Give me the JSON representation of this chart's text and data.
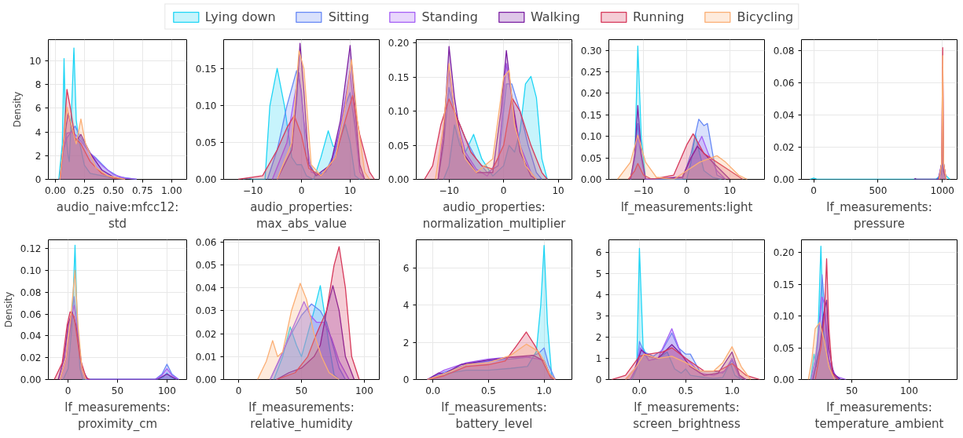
{
  "chart_data": [
    {
      "type": "area",
      "legend": "top",
      "grid": true,
      "xlabel": "audio_naive:mfcc12:\nstd",
      "ylabel": "Density",
      "xlim": [
        -0.06,
        1.13
      ],
      "xticks": [
        {
          "value": 0,
          "label": "0.00"
        },
        {
          "value": 0.25,
          "label": "0.25"
        },
        {
          "value": 0.5,
          "label": "0.50"
        },
        {
          "value": 0.75,
          "label": "0.75"
        },
        {
          "value": 1,
          "label": "1.00"
        }
      ],
      "ylim": [
        0,
        11.8
      ],
      "yticks": [
        0,
        2,
        4,
        6,
        8,
        10
      ],
      "series": [
        {
          "name": "Lying down",
          "color": "#1fd5f5",
          "x": [
            0.03,
            0.06,
            0.075,
            0.09,
            0.11,
            0.12,
            0.14,
            0.16,
            0.18,
            0.2,
            0.25,
            0.3,
            0.4,
            0.5,
            0.6
          ],
          "values": [
            0,
            3,
            10.2,
            4,
            2,
            1.5,
            6,
            11.1,
            5,
            3.5,
            1.2,
            0.5,
            0.3,
            0.1,
            0
          ]
        },
        {
          "name": "Sitting",
          "color": "#6688f5",
          "x": [
            0.04,
            0.07,
            0.1,
            0.17,
            0.22,
            0.3,
            0.35,
            0.45,
            0.55,
            0.7
          ],
          "values": [
            0,
            2.5,
            3.5,
            4.5,
            3.5,
            2.2,
            1.8,
            0.8,
            0.2,
            0
          ]
        },
        {
          "name": "Standing",
          "color": "#a45ef5",
          "x": [
            0.04,
            0.07,
            0.1,
            0.15,
            0.2,
            0.3,
            0.4,
            0.5,
            0.6,
            0.7
          ],
          "values": [
            0,
            2.5,
            3.9,
            4,
            3.5,
            2.2,
            1.2,
            0.4,
            0.1,
            0
          ]
        },
        {
          "name": "Walking",
          "color": "#7b1fa2",
          "x": [
            0.04,
            0.07,
            0.11,
            0.15,
            0.18,
            0.22,
            0.3,
            0.4,
            0.5,
            0.6
          ],
          "values": [
            0,
            3,
            5.6,
            4,
            3.2,
            3.8,
            2.2,
            0.8,
            0.2,
            0
          ]
        },
        {
          "name": "Running",
          "color": "#d6395b",
          "x": [
            0.04,
            0.07,
            0.1,
            0.13,
            0.17,
            0.22,
            0.3,
            0.4,
            0.5,
            0.6
          ],
          "values": [
            0,
            3,
            7.6,
            6,
            3.5,
            3,
            1.5,
            0.5,
            0.1,
            0
          ]
        },
        {
          "name": "Bicycling",
          "color": "#fbae74",
          "x": [
            0.04,
            0.07,
            0.1,
            0.14,
            0.18,
            0.22,
            0.26,
            0.35,
            0.45,
            0.6
          ],
          "values": [
            0,
            3,
            6.1,
            4.5,
            3,
            5.1,
            3,
            1,
            0.3,
            0
          ]
        }
      ]
    },
    {
      "type": "area",
      "grid": true,
      "xlabel": "audio_properties:\nmax_abs_value",
      "xlim": [
        -16,
        16
      ],
      "xticks": [
        {
          "value": -10,
          "label": "−10"
        },
        0,
        10
      ],
      "ylim": [
        0,
        0.19
      ],
      "yticks": [
        {
          "value": 0,
          "label": "0.00"
        },
        {
          "value": 0.05,
          "label": "0.05"
        },
        {
          "value": 0.1,
          "label": "0.10"
        },
        {
          "value": 0.15,
          "label": "0.15"
        }
      ],
      "series": [
        {
          "color": "#1fd5f5",
          "x": [
            -12,
            -11,
            -10,
            -7.5,
            -6.5,
            -5,
            -3.5,
            -2,
            -1,
            0,
            1,
            2.5,
            4,
            5.5,
            6.5,
            7.5,
            9,
            10,
            11,
            12
          ],
          "values": [
            0,
            0.002,
            0,
            0,
            0.1,
            0.151,
            0.1,
            0.03,
            0.02,
            0.02,
            0.005,
            0,
            0.03,
            0.066,
            0.045,
            0.045,
            0.075,
            0.05,
            0.005,
            0
          ]
        },
        {
          "color": "#6688f5",
          "x": [
            -7,
            -5,
            -3,
            -1,
            0,
            1,
            3,
            5,
            7,
            9,
            10,
            11,
            12,
            13
          ],
          "values": [
            0,
            0.04,
            0.1,
            0.148,
            0.12,
            0.03,
            0.005,
            0.01,
            0.04,
            0.1,
            0.118,
            0.07,
            0.01,
            0
          ]
        },
        {
          "color": "#a45ef5",
          "x": [
            -6,
            -3,
            -1.5,
            -0.5,
            0.5,
            2,
            4,
            6,
            8,
            10,
            11,
            12,
            13
          ],
          "values": [
            0,
            0.05,
            0.11,
            0.145,
            0.08,
            0.01,
            0.005,
            0.02,
            0.07,
            0.148,
            0.08,
            0.01,
            0
          ]
        },
        {
          "color": "#7b1fa2",
          "x": [
            -5,
            -2,
            -1,
            -0.3,
            0.5,
            1.5,
            3,
            6,
            8,
            10,
            11,
            12,
            13
          ],
          "values": [
            0,
            0.04,
            0.11,
            0.185,
            0.12,
            0.02,
            0.005,
            0.02,
            0.08,
            0.182,
            0.1,
            0.02,
            0
          ]
        },
        {
          "color": "#d6395b",
          "x": [
            -13,
            -8,
            -5,
            -3,
            -1.5,
            0,
            1.5,
            4,
            7,
            9,
            10.5,
            12,
            14,
            15
          ],
          "values": [
            0,
            0.005,
            0.04,
            0.07,
            0.087,
            0.06,
            0.015,
            0.005,
            0.03,
            0.08,
            0.114,
            0.06,
            0.01,
            0
          ]
        },
        {
          "color": "#fbae74",
          "x": [
            -5,
            -2,
            -0.5,
            0.5,
            2,
            4,
            7,
            9,
            10.3,
            11.5,
            13,
            14
          ],
          "values": [
            0,
            0.05,
            0.175,
            0.15,
            0.02,
            0.005,
            0.03,
            0.1,
            0.163,
            0.08,
            0.01,
            0
          ]
        }
      ]
    },
    {
      "type": "area",
      "grid": true,
      "xlabel": "audio_properties:\nnormalization_multiplier",
      "xlim": [
        -16,
        12.5
      ],
      "xticks": [
        {
          "value": -10,
          "label": "−10"
        },
        0,
        10
      ],
      "ylim": [
        0,
        0.205
      ],
      "yticks": [
        {
          "value": 0,
          "label": "0.00"
        },
        {
          "value": 0.05,
          "label": "0.05"
        },
        {
          "value": 0.1,
          "label": "0.10"
        },
        {
          "value": 0.15,
          "label": "0.15"
        },
        {
          "value": 0.2,
          "label": "0.20"
        }
      ],
      "series": [
        {
          "color": "#1fd5f5",
          "x": [
            -11,
            -10,
            -9,
            -8,
            -7,
            -5.5,
            -4,
            -2,
            0,
            1,
            2,
            3,
            4,
            5,
            6,
            7,
            8
          ],
          "values": [
            0,
            0.02,
            0.08,
            0.05,
            0.04,
            0.066,
            0.03,
            0.005,
            0.02,
            0.05,
            0.04,
            0.07,
            0.14,
            0.151,
            0.12,
            0.03,
            0
          ]
        },
        {
          "color": "#6688f5",
          "x": [
            -12,
            -11,
            -10,
            -9,
            -7,
            -5,
            -3,
            -1,
            0.5,
            1.5,
            3,
            4.5,
            6,
            7
          ],
          "values": [
            0,
            0.05,
            0.135,
            0.1,
            0.06,
            0.03,
            0.01,
            0.02,
            0.14,
            0.14,
            0.1,
            0.05,
            0.01,
            0
          ]
        },
        {
          "color": "#a45ef5",
          "x": [
            -12,
            -11,
            -10,
            -9,
            -7,
            -5,
            -3,
            -1,
            0.5,
            1.5,
            3,
            5,
            6
          ],
          "values": [
            0,
            0.08,
            0.16,
            0.1,
            0.04,
            0.015,
            0.005,
            0.03,
            0.17,
            0.12,
            0.05,
            0.01,
            0
          ]
        },
        {
          "color": "#7b1fa2",
          "x": [
            -12,
            -11,
            -10,
            -9,
            -7.5,
            -5,
            -2,
            -0.5,
            0.5,
            1.5,
            3,
            5,
            6
          ],
          "values": [
            0,
            0.06,
            0.195,
            0.12,
            0.04,
            0.01,
            0.01,
            0.1,
            0.189,
            0.12,
            0.04,
            0.005,
            0
          ]
        },
        {
          "color": "#d6395b",
          "x": [
            -14.5,
            -13,
            -11.5,
            -10,
            -8,
            -6,
            -4,
            -2,
            0,
            1.5,
            3,
            5,
            7,
            8
          ],
          "values": [
            0,
            0.02,
            0.08,
            0.118,
            0.08,
            0.04,
            0.02,
            0.015,
            0.05,
            0.12,
            0.1,
            0.05,
            0.01,
            0
          ]
        },
        {
          "color": "#fbae74",
          "x": [
            -12.5,
            -11,
            -10,
            -9,
            -7,
            -5,
            -2,
            0,
            1,
            2,
            4,
            6
          ],
          "values": [
            0,
            0.08,
            0.17,
            0.1,
            0.03,
            0.01,
            0.03,
            0.15,
            0.16,
            0.08,
            0.02,
            0
          ]
        }
      ]
    },
    {
      "type": "area",
      "grid": true,
      "xlabel": "lf_measurements:light",
      "xlim": [
        -18,
        18
      ],
      "xticks": [
        {
          "value": -10,
          "label": "−10"
        },
        0,
        10
      ],
      "ylim": [
        0,
        0.325
      ],
      "yticks": [
        {
          "value": 0,
          "label": "0.00"
        },
        {
          "value": 0.05,
          "label": "0.05"
        },
        {
          "value": 0.1,
          "label": "0.10"
        },
        {
          "value": 0.15,
          "label": "0.15"
        },
        {
          "value": 0.2,
          "label": "0.20"
        },
        {
          "value": 0.25,
          "label": "0.25"
        },
        {
          "value": 0.3,
          "label": "0.30"
        }
      ],
      "series": [
        {
          "color": "#1fd5f5",
          "x": [
            -13,
            -12,
            -11.3,
            -10.5,
            -9.5,
            0,
            1,
            2,
            3,
            4,
            6,
            8
          ],
          "values": [
            0,
            0.05,
            0.31,
            0.1,
            0,
            0,
            0.04,
            0.105,
            0.06,
            0.02,
            0.005,
            0
          ]
        },
        {
          "color": "#6688f5",
          "x": [
            -13,
            -12,
            -11.3,
            -10.5,
            -9.5,
            -1,
            1,
            2.8,
            4,
            4.8,
            6,
            7,
            9
          ],
          "values": [
            0,
            0.05,
            0.13,
            0.05,
            0,
            0,
            0.06,
            0.14,
            0.125,
            0.13,
            0.06,
            0.01,
            0
          ]
        },
        {
          "color": "#a45ef5",
          "x": [
            -13,
            -12,
            -11.3,
            -10.5,
            -9.5,
            -1,
            1,
            3.5,
            5,
            7,
            9
          ],
          "values": [
            0,
            0.05,
            0.1,
            0.05,
            0,
            0.005,
            0.05,
            0.1,
            0.06,
            0.02,
            0
          ]
        },
        {
          "color": "#7b1fa2",
          "x": [
            -13,
            -12,
            -11.3,
            -10.5,
            -9.5,
            -1,
            1,
            2.5,
            5,
            8,
            10
          ],
          "values": [
            0,
            0.06,
            0.172,
            0.06,
            0,
            0.005,
            0.05,
            0.077,
            0.05,
            0.02,
            0
          ]
        },
        {
          "color": "#d6395b",
          "x": [
            -13.5,
            -12,
            -11.3,
            -10,
            -8,
            -3,
            0,
            1.5,
            4,
            7,
            10,
            13
          ],
          "values": [
            0,
            0.02,
            0.037,
            0.01,
            0,
            0.01,
            0.08,
            0.106,
            0.06,
            0.04,
            0.02,
            0
          ]
        },
        {
          "color": "#fbae74",
          "x": [
            -16,
            -13,
            -11.3,
            -9.5,
            -7,
            -3,
            0,
            3,
            7,
            9,
            12,
            14
          ],
          "values": [
            0,
            0.04,
            0.103,
            0.04,
            0.005,
            0,
            0.02,
            0.04,
            0.055,
            0.04,
            0.01,
            0
          ]
        }
      ]
    },
    {
      "type": "area",
      "grid": true,
      "xlabel": "lf_measurements:\npressure",
      "xlim": [
        -95,
        1115
      ],
      "xticks": [
        0,
        500,
        1000
      ],
      "ylim": [
        0,
        0.087
      ],
      "yticks": [
        {
          "value": 0,
          "label": "0.00"
        },
        {
          "value": 0.02,
          "label": "0.02"
        },
        {
          "value": 0.04,
          "label": "0.04"
        },
        {
          "value": 0.06,
          "label": "0.06"
        },
        {
          "value": 0.08,
          "label": "0.08"
        }
      ],
      "series": [
        {
          "color": "#1fd5f5",
          "x": [
            -30,
            0,
            30,
            950,
            990,
            1005,
            1020,
            1060
          ],
          "values": [
            0,
            0.0008,
            0,
            0,
            0.003,
            0.0125,
            0.003,
            0
          ]
        },
        {
          "color": "#6688f5",
          "x": [
            960,
            990,
            1000,
            1005,
            1010,
            1030
          ],
          "values": [
            0,
            0.003,
            0.02,
            0.024,
            0.01,
            0
          ]
        },
        {
          "color": "#a45ef5",
          "x": [
            970,
            995,
            1003,
            1010,
            1030
          ],
          "values": [
            0,
            0.01,
            0.07,
            0.01,
            0
          ]
        },
        {
          "color": "#7b1fa2",
          "x": [
            780,
            790,
            800,
            970,
            995,
            1003,
            1010,
            1030
          ],
          "values": [
            0,
            0.0005,
            0,
            0,
            0.01,
            0.035,
            0.005,
            0
          ]
        },
        {
          "color": "#d6395b",
          "x": [
            975,
            995,
            1003,
            1010,
            1030
          ],
          "values": [
            0,
            0.01,
            0.082,
            0.01,
            0
          ]
        },
        {
          "color": "#fbae74",
          "x": [
            975,
            995,
            1003,
            1010,
            1030
          ],
          "values": [
            0,
            0.01,
            0.077,
            0.01,
            0
          ]
        }
      ]
    },
    {
      "type": "area",
      "grid": true,
      "xlabel": "lf_measurements:\nproximity_cm",
      "ylabel": "Density",
      "xlim": [
        -20,
        120
      ],
      "xticks": [
        0,
        50,
        100
      ],
      "ylim": [
        0,
        0.128
      ],
      "yticks": [
        {
          "value": 0,
          "label": "0.00"
        },
        {
          "value": 0.02,
          "label": "0.02"
        },
        {
          "value": 0.04,
          "label": "0.04"
        },
        {
          "value": 0.06,
          "label": "0.06"
        },
        {
          "value": 0.08,
          "label": "0.08"
        },
        {
          "value": 0.1,
          "label": "0.10"
        },
        {
          "value": 0.12,
          "label": "0.12"
        }
      ],
      "series": [
        {
          "color": "#1fd5f5",
          "x": [
            -5,
            0,
            4,
            7,
            9,
            12,
            15,
            90,
            96,
            100,
            104,
            110
          ],
          "values": [
            0,
            0.01,
            0.05,
            0.123,
            0.06,
            0.01,
            0,
            0,
            0.002,
            0.006,
            0.002,
            0
          ]
        },
        {
          "color": "#6688f5",
          "x": [
            -8,
            -2,
            3,
            6,
            9,
            14,
            18,
            88,
            95,
            100,
            105,
            112
          ],
          "values": [
            0,
            0.02,
            0.05,
            0.076,
            0.05,
            0.01,
            0,
            0,
            0.005,
            0.014,
            0.005,
            0
          ]
        },
        {
          "color": "#a45ef5",
          "x": [
            -8,
            -2,
            3,
            6,
            9,
            14,
            18,
            88,
            95,
            100,
            105,
            112
          ],
          "values": [
            0,
            0.02,
            0.055,
            0.068,
            0.05,
            0.01,
            0,
            0,
            0.004,
            0.01,
            0.004,
            0
          ]
        },
        {
          "color": "#7b1fa2",
          "x": [
            -10,
            -4,
            0,
            4,
            8,
            14,
            20,
            90,
            100,
            110
          ],
          "values": [
            0,
            0.02,
            0.05,
            0.062,
            0.05,
            0.01,
            0,
            0,
            0.005,
            0
          ]
        },
        {
          "color": "#d6395b",
          "x": [
            -14,
            -6,
            -1,
            2,
            6,
            12,
            18,
            22
          ],
          "values": [
            0,
            0.015,
            0.05,
            0.062,
            0.058,
            0.02,
            0.002,
            0
          ]
        },
        {
          "color": "#fbae74",
          "x": [
            -8,
            -2,
            3,
            7,
            10,
            14,
            18
          ],
          "values": [
            0,
            0.02,
            0.06,
            0.1,
            0.05,
            0.01,
            0
          ]
        }
      ]
    },
    {
      "type": "area",
      "grid": true,
      "xlabel": "lf_measurements:\nrelative_humidity",
      "xlim": [
        -12,
        112
      ],
      "xticks": [
        0,
        50,
        100
      ],
      "ylim": [
        0,
        0.061
      ],
      "yticks": [
        {
          "value": 0,
          "label": "0.00"
        },
        {
          "value": 0.01,
          "label": "0.01"
        },
        {
          "value": 0.02,
          "label": "0.02"
        },
        {
          "value": 0.03,
          "label": "0.03"
        },
        {
          "value": 0.04,
          "label": "0.04"
        },
        {
          "value": 0.05,
          "label": "0.05"
        },
        {
          "value": 0.06,
          "label": "0.06"
        }
      ],
      "series": [
        {
          "color": "#1fd5f5",
          "x": [
            28,
            35,
            41,
            46,
            50,
            55,
            60,
            65,
            68,
            72,
            76,
            80
          ],
          "values": [
            0,
            0.01,
            0.023,
            0.015,
            0.01,
            0.02,
            0.03,
            0.041,
            0.03,
            0.015,
            0.002,
            0
          ]
        },
        {
          "color": "#6688f5",
          "x": [
            25,
            32,
            40,
            50,
            58,
            65,
            70,
            75,
            80,
            85
          ],
          "values": [
            0,
            0.008,
            0.018,
            0.028,
            0.033,
            0.03,
            0.025,
            0.015,
            0.005,
            0
          ]
        },
        {
          "color": "#a45ef5",
          "x": [
            25,
            35,
            45,
            52,
            57,
            62,
            68,
            74,
            80,
            88
          ],
          "values": [
            0,
            0.012,
            0.025,
            0.034,
            0.028,
            0.025,
            0.025,
            0.018,
            0.008,
            0
          ]
        },
        {
          "color": "#7b1fa2",
          "x": [
            30,
            40,
            50,
            60,
            65,
            70,
            75,
            80,
            85,
            92
          ],
          "values": [
            0,
            0.003,
            0.005,
            0.01,
            0.015,
            0.03,
            0.041,
            0.03,
            0.01,
            0
          ]
        },
        {
          "color": "#d6395b",
          "x": [
            30,
            45,
            55,
            62,
            70,
            76,
            80,
            85,
            90,
            96
          ],
          "values": [
            0,
            0.003,
            0.01,
            0.02,
            0.03,
            0.05,
            0.058,
            0.04,
            0.01,
            0
          ]
        },
        {
          "color": "#fbae74",
          "x": [
            15,
            22,
            27,
            31,
            35,
            42,
            49,
            54,
            60,
            66,
            72,
            80
          ],
          "values": [
            0,
            0.008,
            0.017,
            0.01,
            0.012,
            0.03,
            0.042,
            0.035,
            0.02,
            0.01,
            0.003,
            0
          ]
        }
      ]
    },
    {
      "type": "area",
      "grid": true,
      "xlabel": "lf_measurements:\nbattery_level",
      "xlim": [
        -0.15,
        1.25
      ],
      "xticks": [
        {
          "value": 0,
          "label": "0.0"
        },
        0.5,
        {
          "value": 1,
          "label": "1.0"
        }
      ],
      "ylim": [
        0,
        7.5
      ],
      "yticks": [
        0,
        2,
        4,
        6
      ],
      "series": [
        {
          "color": "#1fd5f5",
          "x": [
            -0.05,
            0.1,
            0.3,
            0.5,
            0.7,
            0.85,
            0.93,
            0.97,
            1.0,
            1.03,
            1.07,
            1.1
          ],
          "values": [
            0,
            0.3,
            0.5,
            0.5,
            0.6,
            0.7,
            1.5,
            4,
            7.2,
            3,
            0.1,
            0
          ]
        },
        {
          "color": "#6688f5",
          "x": [
            -0.05,
            0.1,
            0.3,
            0.5,
            0.7,
            0.85,
            0.95,
            1.0,
            1.04,
            1.1
          ],
          "values": [
            0,
            0.4,
            0.8,
            1.0,
            1.1,
            1.2,
            1.4,
            1.7,
            0.8,
            0
          ]
        },
        {
          "color": "#a45ef5",
          "x": [
            -0.05,
            0.1,
            0.3,
            0.5,
            0.7,
            0.85,
            0.95,
            1.0,
            1.05,
            1.1
          ],
          "values": [
            0,
            0.5,
            0.9,
            1.1,
            1.2,
            1.2,
            1.1,
            1.0,
            0.3,
            0
          ]
        },
        {
          "color": "#7b1fa2",
          "x": [
            -0.05,
            0.05,
            0.1,
            0.25,
            0.5,
            0.7,
            0.9,
            1.0,
            1.05,
            1.1
          ],
          "values": [
            0,
            0.35,
            0.3,
            0.8,
            1.05,
            1.2,
            1.3,
            1.0,
            0.3,
            0
          ]
        },
        {
          "color": "#d6395b",
          "x": [
            -0.05,
            0.1,
            0.3,
            0.5,
            0.65,
            0.75,
            0.84,
            0.92,
            1.0,
            1.06,
            1.1
          ],
          "values": [
            0,
            0.2,
            0.7,
            0.8,
            1.0,
            1.8,
            2.55,
            1.8,
            0.8,
            0.1,
            0
          ]
        },
        {
          "color": "#fbae74",
          "x": [
            -0.05,
            0.1,
            0.3,
            0.5,
            0.7,
            0.84,
            0.95,
            1.0,
            1.05,
            1.1
          ],
          "values": [
            0,
            0.3,
            0.8,
            0.9,
            1.3,
            1.9,
            1.5,
            1.0,
            0.3,
            0
          ]
        }
      ]
    },
    {
      "type": "area",
      "grid": true,
      "xlabel": "lf_measurements:\nscreen_brightness",
      "xlim": [
        -0.33,
        1.35
      ],
      "xticks": [
        {
          "value": 0,
          "label": "0.0"
        },
        0.5,
        {
          "value": 1,
          "label": "1.0"
        }
      ],
      "ylim": [
        0,
        6.6
      ],
      "yticks": [
        0,
        1,
        2,
        3,
        4,
        5,
        6
      ],
      "series": [
        {
          "color": "#1fd5f5",
          "x": [
            -0.08,
            -0.03,
            0.0,
            0.04,
            0.1,
            0.2,
            0.3,
            0.38,
            0.45,
            0.5,
            0.55,
            0.7,
            0.8,
            0.9,
            0.98,
            1.03,
            1.1
          ],
          "values": [
            0,
            0.5,
            6.2,
            1.5,
            0.9,
            1.0,
            1.3,
            0.5,
            0.3,
            0.5,
            0.2,
            0.1,
            0.05,
            0.1,
            0.8,
            0.2,
            0
          ]
        },
        {
          "color": "#6688f5",
          "x": [
            -0.1,
            -0.03,
            0.0,
            0.05,
            0.15,
            0.25,
            0.35,
            0.42,
            0.5,
            0.55,
            0.65,
            0.8,
            0.9,
            1.0,
            1.08,
            1.15
          ],
          "values": [
            0,
            0.5,
            1.8,
            1.3,
            1.1,
            1.4,
            2.2,
            1.5,
            1.2,
            1.2,
            0.4,
            0.4,
            0.3,
            0.9,
            0.1,
            0
          ]
        },
        {
          "color": "#a45ef5",
          "x": [
            -0.1,
            -0.03,
            0.01,
            0.1,
            0.2,
            0.35,
            0.45,
            0.55,
            0.65,
            0.8,
            0.92,
            1.0,
            1.08,
            1.15
          ],
          "values": [
            0,
            0.6,
            1.5,
            0.9,
            1.0,
            2.4,
            1.2,
            0.8,
            0.3,
            0.2,
            0.4,
            1.0,
            0.2,
            0
          ]
        },
        {
          "color": "#7b1fa2",
          "x": [
            -0.15,
            -0.05,
            0.02,
            0.1,
            0.2,
            0.35,
            0.45,
            0.55,
            0.7,
            0.85,
            1.0,
            1.08,
            1.15
          ],
          "values": [
            0,
            0.5,
            1.4,
            1.1,
            1.0,
            1.65,
            1.2,
            0.6,
            0.2,
            0.3,
            1.3,
            0.2,
            0
          ]
        },
        {
          "color": "#d6395b",
          "x": [
            -0.3,
            -0.15,
            0.0,
            0.1,
            0.25,
            0.35,
            0.5,
            0.7,
            0.85,
            1.0,
            1.15,
            1.3
          ],
          "values": [
            0,
            0.2,
            1.1,
            1.2,
            1.3,
            1.5,
            1.0,
            0.4,
            0.4,
            0.75,
            0.2,
            0
          ]
        },
        {
          "color": "#fbae74",
          "x": [
            -0.15,
            -0.05,
            0.05,
            0.2,
            0.35,
            0.5,
            0.65,
            0.8,
            0.9,
            1.0,
            1.1,
            1.2
          ],
          "values": [
            0,
            0.5,
            1.2,
            1.0,
            1.1,
            0.8,
            0.4,
            0.4,
            0.8,
            1.55,
            0.6,
            0
          ]
        }
      ]
    },
    {
      "type": "area",
      "grid": true,
      "xlabel": "lf_measurements:\ntemperature_ambient",
      "xlim": [
        6,
        142
      ],
      "xticks": [
        50,
        100
      ],
      "ylim": [
        0,
        0.22
      ],
      "yticks": [
        {
          "value": 0,
          "label": "0.00"
        },
        {
          "value": 0.05,
          "label": "0.05"
        },
        {
          "value": 0.1,
          "label": "0.10"
        },
        {
          "value": 0.15,
          "label": "0.15"
        },
        {
          "value": 0.2,
          "label": "0.20"
        }
      ],
      "series": [
        {
          "color": "#1fd5f5",
          "x": [
            14,
            17,
            19,
            21,
            23,
            25,
            27,
            30,
            35,
            40
          ],
          "values": [
            0,
            0.04,
            0.02,
            0.1,
            0.21,
            0.08,
            0.05,
            0.02,
            0.005,
            0
          ]
        },
        {
          "color": "#6688f5",
          "x": [
            14,
            18,
            22,
            24,
            26,
            29,
            33,
            40
          ],
          "values": [
            0,
            0.03,
            0.1,
            0.165,
            0.12,
            0.04,
            0.01,
            0
          ]
        },
        {
          "color": "#a45ef5",
          "x": [
            15,
            20,
            24,
            26,
            30,
            36,
            45
          ],
          "values": [
            0,
            0.05,
            0.13,
            0.12,
            0.03,
            0.005,
            0
          ]
        },
        {
          "color": "#7b1fa2",
          "x": [
            16,
            22,
            25,
            28,
            30,
            34,
            40
          ],
          "values": [
            0,
            0.05,
            0.1,
            0.125,
            0.05,
            0.01,
            0
          ]
        },
        {
          "color": "#d6395b",
          "x": [
            18,
            23,
            26,
            28,
            30,
            33,
            38
          ],
          "values": [
            0,
            0.05,
            0.1,
            0.19,
            0.08,
            0.01,
            0
          ]
        },
        {
          "color": "#fbae74",
          "x": [
            12,
            15,
            18,
            22,
            26,
            30,
            35
          ],
          "values": [
            0,
            0.03,
            0.08,
            0.09,
            0.06,
            0.02,
            0
          ]
        }
      ]
    }
  ]
}
